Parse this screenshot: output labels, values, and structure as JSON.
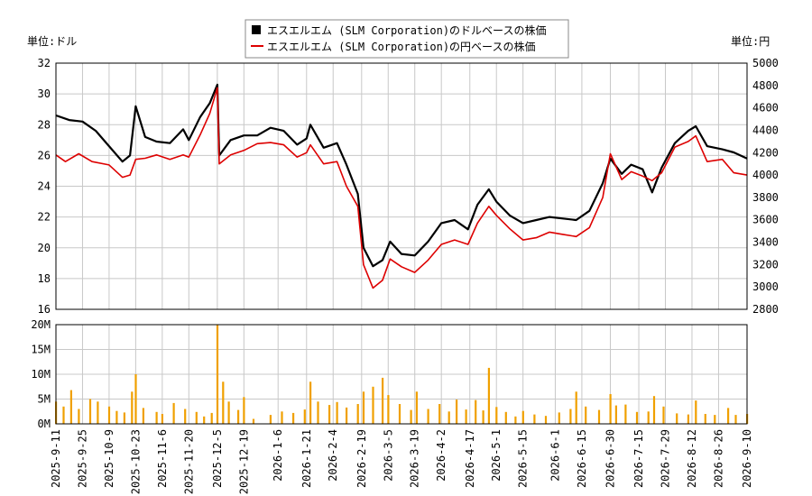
{
  "legend": {
    "usd_label": "エスエルエム (SLM Corporation)のドルベースの株価",
    "jpy_label": "エスエルエム (SLM Corporation)の円ベースの株価"
  },
  "units": {
    "left": "単位:ドル",
    "right": "単位:円"
  },
  "colors": {
    "usd": "#000000",
    "jpy": "#dd0000",
    "volume": "#f0a000",
    "grid": "#c8c8c8"
  },
  "chart_data": [
    {
      "type": "line",
      "series": [
        {
          "name": "エスエルエム (SLM Corporation)のドルベースの株価",
          "axis": "left",
          "points": [
            [
              "2025-09-11",
              28.6
            ],
            [
              "2025-09-18",
              28.3
            ],
            [
              "2025-09-25",
              28.2
            ],
            [
              "2025-10-02",
              27.6
            ],
            [
              "2025-10-09",
              26.6
            ],
            [
              "2025-10-16",
              25.6
            ],
            [
              "2025-10-20",
              26.0
            ],
            [
              "2025-10-23",
              29.2
            ],
            [
              "2025-10-28",
              27.2
            ],
            [
              "2025-11-03",
              26.9
            ],
            [
              "2025-11-10",
              26.8
            ],
            [
              "2025-11-17",
              27.7
            ],
            [
              "2025-11-20",
              27.0
            ],
            [
              "2025-11-26",
              28.5
            ],
            [
              "2025-12-01",
              29.4
            ],
            [
              "2025-12-05",
              30.6
            ],
            [
              "2025-12-06",
              26.0
            ],
            [
              "2025-12-12",
              27.0
            ],
            [
              "2025-12-19",
              27.3
            ],
            [
              "2025-12-26",
              27.3
            ],
            [
              "2026-01-02",
              27.8
            ],
            [
              "2026-01-09",
              27.6
            ],
            [
              "2026-01-16",
              26.7
            ],
            [
              "2026-01-21",
              27.1
            ],
            [
              "2026-01-23",
              28.0
            ],
            [
              "2026-01-30",
              26.5
            ],
            [
              "2026-02-06",
              26.8
            ],
            [
              "2026-02-11",
              25.4
            ],
            [
              "2026-02-17",
              23.5
            ],
            [
              "2026-02-20",
              20.0
            ],
            [
              "2026-02-25",
              18.8
            ],
            [
              "2026-03-02",
              19.2
            ],
            [
              "2026-03-06",
              20.4
            ],
            [
              "2026-03-12",
              19.6
            ],
            [
              "2026-03-19",
              19.5
            ],
            [
              "2026-03-26",
              20.4
            ],
            [
              "2026-04-02",
              21.6
            ],
            [
              "2026-04-09",
              21.8
            ],
            [
              "2026-04-16",
              21.2
            ],
            [
              "2026-04-21",
              22.8
            ],
            [
              "2026-04-27",
              23.8
            ],
            [
              "2026-05-01",
              23.0
            ],
            [
              "2026-05-08",
              22.1
            ],
            [
              "2026-05-15",
              21.6
            ],
            [
              "2026-05-22",
              21.8
            ],
            [
              "2026-05-29",
              22.0
            ],
            [
              "2026-06-05",
              21.9
            ],
            [
              "2026-06-12",
              21.8
            ],
            [
              "2026-06-19",
              22.4
            ],
            [
              "2026-06-26",
              24.2
            ],
            [
              "2026-06-30",
              25.8
            ],
            [
              "2026-07-06",
              24.8
            ],
            [
              "2026-07-11",
              25.4
            ],
            [
              "2026-07-17",
              25.1
            ],
            [
              "2026-07-22",
              23.6
            ],
            [
              "2026-07-27",
              25.2
            ],
            [
              "2026-08-03",
              26.8
            ],
            [
              "2026-08-10",
              27.6
            ],
            [
              "2026-08-14",
              27.9
            ],
            [
              "2026-08-20",
              26.6
            ],
            [
              "2026-08-28",
              26.4
            ],
            [
              "2026-09-03",
              26.2
            ],
            [
              "2026-09-10",
              25.8
            ]
          ]
        },
        {
          "name": "エスエルエム (SLM Corporation)の円ベースの株価",
          "axis": "right",
          "points": [
            [
              "2025-09-11",
              4180
            ],
            [
              "2025-09-16",
              4120
            ],
            [
              "2025-09-23",
              4190
            ],
            [
              "2025-09-30",
              4120
            ],
            [
              "2025-10-09",
              4090
            ],
            [
              "2025-10-16",
              3980
            ],
            [
              "2025-10-20",
              4000
            ],
            [
              "2025-10-23",
              4140
            ],
            [
              "2025-10-28",
              4150
            ],
            [
              "2025-11-03",
              4180
            ],
            [
              "2025-11-10",
              4140
            ],
            [
              "2025-11-17",
              4180
            ],
            [
              "2025-11-20",
              4160
            ],
            [
              "2025-11-26",
              4360
            ],
            [
              "2025-12-01",
              4550
            ],
            [
              "2025-12-05",
              4780
            ],
            [
              "2025-12-06",
              4100
            ],
            [
              "2025-12-12",
              4180
            ],
            [
              "2025-12-19",
              4220
            ],
            [
              "2025-12-26",
              4280
            ],
            [
              "2026-01-02",
              4290
            ],
            [
              "2026-01-09",
              4270
            ],
            [
              "2026-01-16",
              4160
            ],
            [
              "2026-01-21",
              4200
            ],
            [
              "2026-01-23",
              4270
            ],
            [
              "2026-01-30",
              4100
            ],
            [
              "2026-02-06",
              4120
            ],
            [
              "2026-02-11",
              3900
            ],
            [
              "2026-02-17",
              3720
            ],
            [
              "2026-02-20",
              3200
            ],
            [
              "2026-02-25",
              2990
            ],
            [
              "2026-03-02",
              3060
            ],
            [
              "2026-03-06",
              3250
            ],
            [
              "2026-03-12",
              3180
            ],
            [
              "2026-03-19",
              3130
            ],
            [
              "2026-03-26",
              3240
            ],
            [
              "2026-04-02",
              3380
            ],
            [
              "2026-04-09",
              3420
            ],
            [
              "2026-04-16",
              3380
            ],
            [
              "2026-04-21",
              3570
            ],
            [
              "2026-04-27",
              3720
            ],
            [
              "2026-05-01",
              3640
            ],
            [
              "2026-05-08",
              3520
            ],
            [
              "2026-05-15",
              3420
            ],
            [
              "2026-05-22",
              3440
            ],
            [
              "2026-05-29",
              3490
            ],
            [
              "2026-06-05",
              3470
            ],
            [
              "2026-06-12",
              3450
            ],
            [
              "2026-06-19",
              3530
            ],
            [
              "2026-06-26",
              3800
            ],
            [
              "2026-06-30",
              4190
            ],
            [
              "2026-07-06",
              3960
            ],
            [
              "2026-07-11",
              4030
            ],
            [
              "2026-07-17",
              3990
            ],
            [
              "2026-07-22",
              3950
            ],
            [
              "2026-07-27",
              4020
            ],
            [
              "2026-08-03",
              4250
            ],
            [
              "2026-08-10",
              4300
            ],
            [
              "2026-08-14",
              4350
            ],
            [
              "2026-08-20",
              4120
            ],
            [
              "2026-08-28",
              4140
            ],
            [
              "2026-09-03",
              4020
            ],
            [
              "2026-09-10",
              4000
            ]
          ]
        }
      ],
      "y_left": {
        "ylim": [
          16,
          32
        ],
        "ticks": [
          "16",
          "18",
          "20",
          "22",
          "24",
          "26",
          "28",
          "30",
          "32"
        ]
      },
      "y_right": {
        "ylim": [
          2800,
          5000
        ],
        "ticks": [
          "2800",
          "3000",
          "3200",
          "3400",
          "3600",
          "3800",
          "4000",
          "4200",
          "4400",
          "4600",
          "4800",
          "5000"
        ]
      },
      "grid": true,
      "legend_position": "top-center"
    },
    {
      "type": "bar",
      "series": [
        {
          "points": [
            [
              "2025-09-11",
              4.5
            ],
            [
              "2025-09-15",
              3.5
            ],
            [
              "2025-09-19",
              6.8
            ],
            [
              "2025-09-23",
              3.0
            ],
            [
              "2025-09-29",
              5.0
            ],
            [
              "2025-10-03",
              4.5
            ],
            [
              "2025-10-09",
              3.5
            ],
            [
              "2025-10-13",
              2.6
            ],
            [
              "2025-10-17",
              2.3
            ],
            [
              "2025-10-21",
              6.5
            ],
            [
              "2025-10-23",
              10.0
            ],
            [
              "2025-10-27",
              3.2
            ],
            [
              "2025-11-03",
              2.4
            ],
            [
              "2025-11-06",
              2.0
            ],
            [
              "2025-11-12",
              4.2
            ],
            [
              "2025-11-18",
              3.0
            ],
            [
              "2025-11-24",
              2.4
            ],
            [
              "2025-11-28",
              1.5
            ],
            [
              "2025-12-02",
              2.2
            ],
            [
              "2025-12-05",
              20.0
            ],
            [
              "2025-12-08",
              8.5
            ],
            [
              "2025-12-11",
              4.5
            ],
            [
              "2025-12-16",
              2.8
            ],
            [
              "2025-12-19",
              5.4
            ],
            [
              "2025-12-24",
              1.0
            ],
            [
              "2026-01-02",
              1.8
            ],
            [
              "2026-01-08",
              2.5
            ],
            [
              "2026-01-14",
              2.2
            ],
            [
              "2026-01-20",
              2.9
            ],
            [
              "2026-01-23",
              8.5
            ],
            [
              "2026-01-27",
              4.5
            ],
            [
              "2026-02-02",
              3.8
            ],
            [
              "2026-02-06",
              4.4
            ],
            [
              "2026-02-11",
              3.3
            ],
            [
              "2026-02-17",
              4.0
            ],
            [
              "2026-02-20",
              6.5
            ],
            [
              "2026-02-25",
              7.5
            ],
            [
              "2026-03-02",
              9.3
            ],
            [
              "2026-03-05",
              5.8
            ],
            [
              "2026-03-11",
              4.0
            ],
            [
              "2026-03-17",
              2.8
            ],
            [
              "2026-03-20",
              6.5
            ],
            [
              "2026-03-26",
              3.0
            ],
            [
              "2026-04-01",
              4.0
            ],
            [
              "2026-04-06",
              2.5
            ],
            [
              "2026-04-10",
              4.9
            ],
            [
              "2026-04-15",
              2.9
            ],
            [
              "2026-04-20",
              4.8
            ],
            [
              "2026-04-24",
              2.7
            ],
            [
              "2026-04-27",
              11.3
            ],
            [
              "2026-05-01",
              3.4
            ],
            [
              "2026-05-06",
              2.4
            ],
            [
              "2026-05-11",
              1.5
            ],
            [
              "2026-05-15",
              2.6
            ],
            [
              "2026-05-21",
              1.9
            ],
            [
              "2026-05-27",
              1.6
            ],
            [
              "2026-06-03",
              2.3
            ],
            [
              "2026-06-09",
              3.0
            ],
            [
              "2026-06-12",
              6.5
            ],
            [
              "2026-06-17",
              3.5
            ],
            [
              "2026-06-24",
              2.8
            ],
            [
              "2026-06-30",
              6.0
            ],
            [
              "2026-07-03",
              3.7
            ],
            [
              "2026-07-08",
              3.9
            ],
            [
              "2026-07-14",
              2.4
            ],
            [
              "2026-07-20",
              2.5
            ],
            [
              "2026-07-23",
              5.6
            ],
            [
              "2026-07-28",
              3.5
            ],
            [
              "2026-08-04",
              2.1
            ],
            [
              "2026-08-10",
              1.9
            ],
            [
              "2026-08-14",
              4.7
            ],
            [
              "2026-08-19",
              2.0
            ],
            [
              "2026-08-24",
              1.8
            ],
            [
              "2026-08-31",
              3.2
            ],
            [
              "2026-09-04",
              1.8
            ],
            [
              "2026-09-10",
              2.0
            ]
          ]
        }
      ],
      "y_ticks": [
        "0M",
        "5M",
        "10M",
        "15M",
        "20M"
      ],
      "ylim": [
        0,
        20
      ],
      "x_ticks": [
        "2025-9-11",
        "2025-9-25",
        "2025-10-9",
        "2025-10-23",
        "2025-11-6",
        "2025-11-20",
        "2025-12-5",
        "2025-12-19",
        "2026-1-6",
        "2026-1-21",
        "2026-2-4",
        "2026-2-19",
        "2026-3-5",
        "2026-3-19",
        "2026-4-2",
        "2026-4-17",
        "2026-5-1",
        "2026-5-15",
        "2026-6-1",
        "2026-6-15",
        "2026-6-30",
        "2026-7-15",
        "2026-7-29",
        "2026-8-12",
        "2026-8-26",
        "2026-9-10"
      ],
      "grid": true
    }
  ]
}
